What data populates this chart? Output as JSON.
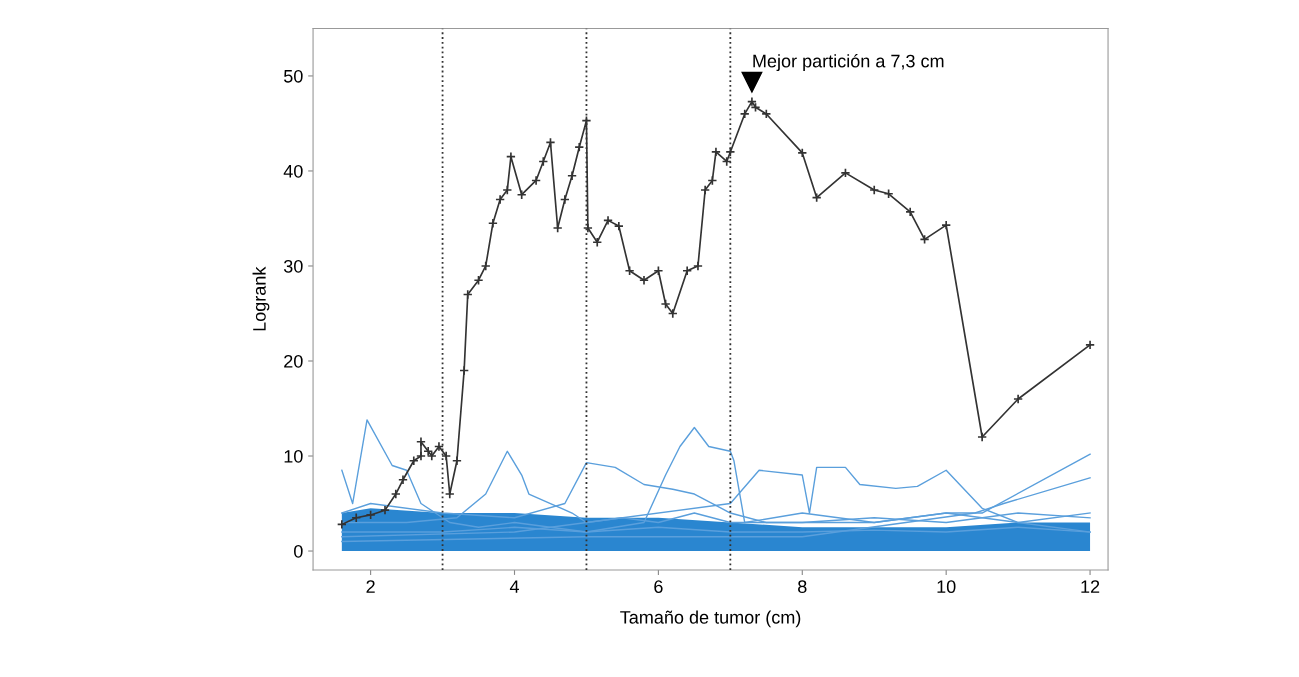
{
  "chart_data": {
    "type": "line",
    "xlabel": "Tamaño de tumor (cm)",
    "ylabel": "Logrank",
    "xlim": [
      1.2,
      12.25
    ],
    "ylim": [
      -2,
      55
    ],
    "xticks": [
      2,
      4,
      6,
      8,
      10,
      12
    ],
    "yticks": [
      0,
      10,
      20,
      30,
      40,
      50
    ],
    "grid": false,
    "legend": false,
    "ref_lines": [
      {
        "axis": "x",
        "value": 3,
        "color": "#333333",
        "line_style": "dotted"
      },
      {
        "axis": "x",
        "value": 5,
        "color": "#333333",
        "line_style": "dotted"
      },
      {
        "axis": "x",
        "value": 7,
        "color": "#333333",
        "line_style": "dotted"
      }
    ],
    "annotations": [
      {
        "text": "Mejor partición a 7,3 cm",
        "x": 7.3,
        "y": 47.3
      }
    ],
    "series": [
      {
        "type": "area",
        "color": "#2a86d0",
        "x": [
          1.6,
          2,
          3,
          4,
          5,
          6,
          7,
          8,
          9,
          10,
          11,
          12
        ],
        "values": [
          4,
          4.5,
          4,
          4,
          3.5,
          3.5,
          3,
          2.5,
          2.5,
          2.5,
          3,
          3
        ]
      },
      {
        "color": "#5a9fdc",
        "x": [
          1.6,
          1.75,
          1.95,
          2.3,
          2.5,
          2.7,
          2.9,
          3.1,
          3.5,
          4.0,
          5,
          6,
          7,
          8,
          9,
          10,
          11,
          12
        ],
        "values": [
          8.5,
          5,
          13.8,
          9,
          8.5,
          5,
          4,
          3,
          2.5,
          3,
          2,
          2.5,
          2,
          2,
          2.2,
          2,
          2.5,
          2
        ],
        "marker": "none"
      },
      {
        "color": "#5a9fdc",
        "x": [
          1.6,
          2.5,
          3.2,
          3.6,
          3.9,
          4.1,
          4.2,
          4.5,
          4.8,
          5,
          5.5,
          6,
          6.5,
          7,
          8,
          9,
          10,
          11,
          12
        ],
        "values": [
          3,
          3,
          3.5,
          6,
          10.5,
          8,
          6,
          5,
          4,
          3,
          3.5,
          3,
          4,
          3,
          3,
          3.5,
          3,
          4,
          3.5
        ],
        "marker": "none"
      },
      {
        "color": "#5a9fdc",
        "x": [
          1.6,
          2,
          3,
          4,
          4.7,
          5.0,
          5.4,
          5.8,
          6.2,
          6.5,
          7.0,
          7.5,
          8,
          9,
          10,
          11,
          12
        ],
        "values": [
          4,
          5,
          4,
          3.5,
          5,
          9.3,
          8.8,
          7,
          6.5,
          6,
          4,
          3,
          3,
          3,
          4,
          3,
          4
        ],
        "marker": "none"
      },
      {
        "color": "#5a9fdc",
        "x": [
          1.6,
          3,
          4,
          5,
          5.8,
          6.1,
          6.3,
          6.5,
          6.7,
          7.0,
          7.05,
          7.2,
          8,
          9,
          10,
          10.5,
          12
        ],
        "values": [
          2,
          2,
          2.5,
          2,
          3,
          8,
          11,
          13,
          11,
          10.5,
          9.5,
          3,
          4,
          3,
          4,
          4,
          10.2
        ],
        "marker": "none"
      },
      {
        "color": "#5a9fdc",
        "x": [
          1.6,
          4,
          7.0,
          7.4,
          8.0,
          8.1,
          8.2,
          8.6,
          8.8,
          9.3,
          9.6,
          10.0,
          10.5,
          11,
          12
        ],
        "values": [
          1.5,
          2,
          5,
          8.5,
          8,
          4,
          8.8,
          8.8,
          7,
          6.6,
          6.8,
          8.5,
          4.5,
          3,
          2
        ],
        "marker": "none"
      },
      {
        "color": "#5a9fdc",
        "x": [
          1.6,
          5,
          8,
          10.4,
          10.8,
          12
        ],
        "values": [
          1,
          1.5,
          1.5,
          4,
          5,
          7.7
        ],
        "marker": "none"
      },
      {
        "color": "#333333",
        "marker": "cross",
        "x": [
          1.6,
          1.8,
          2.0,
          2.2,
          2.35,
          2.45,
          2.6,
          2.7,
          2.7,
          2.8,
          2.85,
          2.95,
          3.05,
          3.1,
          3.2,
          3.3,
          3.35,
          3.5,
          3.6,
          3.7,
          3.8,
          3.9,
          3.95,
          4.1,
          4.3,
          4.4,
          4.5,
          4.6,
          4.7,
          4.8,
          4.9,
          5.0,
          5.02,
          5.15,
          5.3,
          5.45,
          5.6,
          5.8,
          6.0,
          6.1,
          6.2,
          6.4,
          6.55,
          6.65,
          6.75,
          6.8,
          6.95,
          7.0,
          7.2,
          7.3,
          7.35,
          7.5,
          8.0,
          8.2,
          8.6,
          9.0,
          9.2,
          9.5,
          9.7,
          10.0,
          10.5,
          11.0,
          12.0
        ],
        "values": [
          2.8,
          3.5,
          3.8,
          4.3,
          6,
          7.5,
          9.5,
          10,
          11.5,
          10.5,
          10,
          11,
          10,
          6,
          9.5,
          19,
          27,
          28.5,
          30,
          34.5,
          37,
          38,
          41.5,
          37.5,
          39,
          41,
          43,
          34,
          37,
          39.5,
          42.5,
          45.3,
          34,
          32.5,
          34.8,
          34.2,
          29.5,
          28.5,
          29.5,
          26,
          25,
          29.5,
          30,
          38,
          39,
          42,
          41,
          42,
          46,
          47.3,
          46.7,
          46,
          41.9,
          37.2,
          39.8,
          38,
          37.6,
          35.7,
          32.8,
          34.3,
          12,
          16,
          21.7
        ]
      }
    ]
  }
}
